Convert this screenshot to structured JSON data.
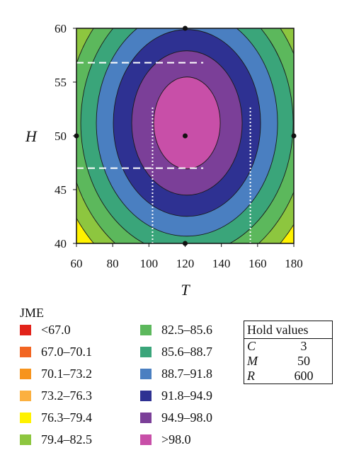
{
  "chart_data": {
    "type": "contour",
    "xlabel": "T",
    "ylabel": "H",
    "xlim": [
      60,
      180
    ],
    "ylim": [
      40,
      60
    ],
    "x_ticks": [
      "60",
      "80",
      "100",
      "120",
      "140",
      "160",
      "180"
    ],
    "y_ticks": [
      "40",
      "45",
      "50",
      "55",
      "60"
    ],
    "center": {
      "x": 121,
      "y": 51.2
    },
    "levels": [
      {
        "label": "<67.0",
        "color": "#e2231a"
      },
      {
        "label": "67.0–70.1",
        "color": "#f26522"
      },
      {
        "label": "70.1–73.2",
        "color": "#f7941d"
      },
      {
        "label": "73.2–76.3",
        "color": "#fbb040"
      },
      {
        "label": "76.3–79.4",
        "color": "#fff200"
      },
      {
        "label": "79.4–82.5",
        "color": "#8dc63f"
      },
      {
        "label": "82.5–85.6",
        "color": "#5cb85c"
      },
      {
        "label": "85.6–88.7",
        "color": "#3aa57a"
      },
      {
        "label": "88.7–91.8",
        "color": "#4a7fc1"
      },
      {
        "label": "91.8–94.9",
        "color": "#2e3192"
      },
      {
        "label": "94.9–98.0",
        "color": "#7b3f98"
      },
      {
        "label": ">98.0",
        "color": "#c84fa8"
      }
    ],
    "design_points": [
      {
        "x": 120,
        "y": 60
      },
      {
        "x": 120,
        "y": 50
      },
      {
        "x": 120,
        "y": 40
      },
      {
        "x": 60,
        "y": 50
      },
      {
        "x": 180,
        "y": 50
      }
    ],
    "annotations": [
      {
        "kind": "dashed-h",
        "y": 56.8,
        "x_from": 60,
        "x_to": 130
      },
      {
        "kind": "dashed-h",
        "y": 47.0,
        "x_from": 60,
        "x_to": 130
      },
      {
        "kind": "dotted-v",
        "x": 102,
        "y_from": 40,
        "y_to": 52.8
      },
      {
        "kind": "dotted-v",
        "x": 156,
        "y_from": 40,
        "y_to": 52.8
      }
    ]
  },
  "legend": {
    "title": "JME",
    "items": [
      "<67.0",
      "67.0–70.1",
      "70.1–73.2",
      "73.2–76.3",
      "76.3–79.4",
      "79.4–82.5",
      "82.5–85.6",
      "85.6–88.7",
      "88.7–91.8",
      "91.8–94.9",
      "94.9–98.0",
      ">98.0"
    ]
  },
  "hold_values": {
    "title": "Hold values",
    "rows": [
      {
        "name": "C",
        "value": "3"
      },
      {
        "name": "M",
        "value": "50"
      },
      {
        "name": "R",
        "value": "600"
      }
    ]
  }
}
